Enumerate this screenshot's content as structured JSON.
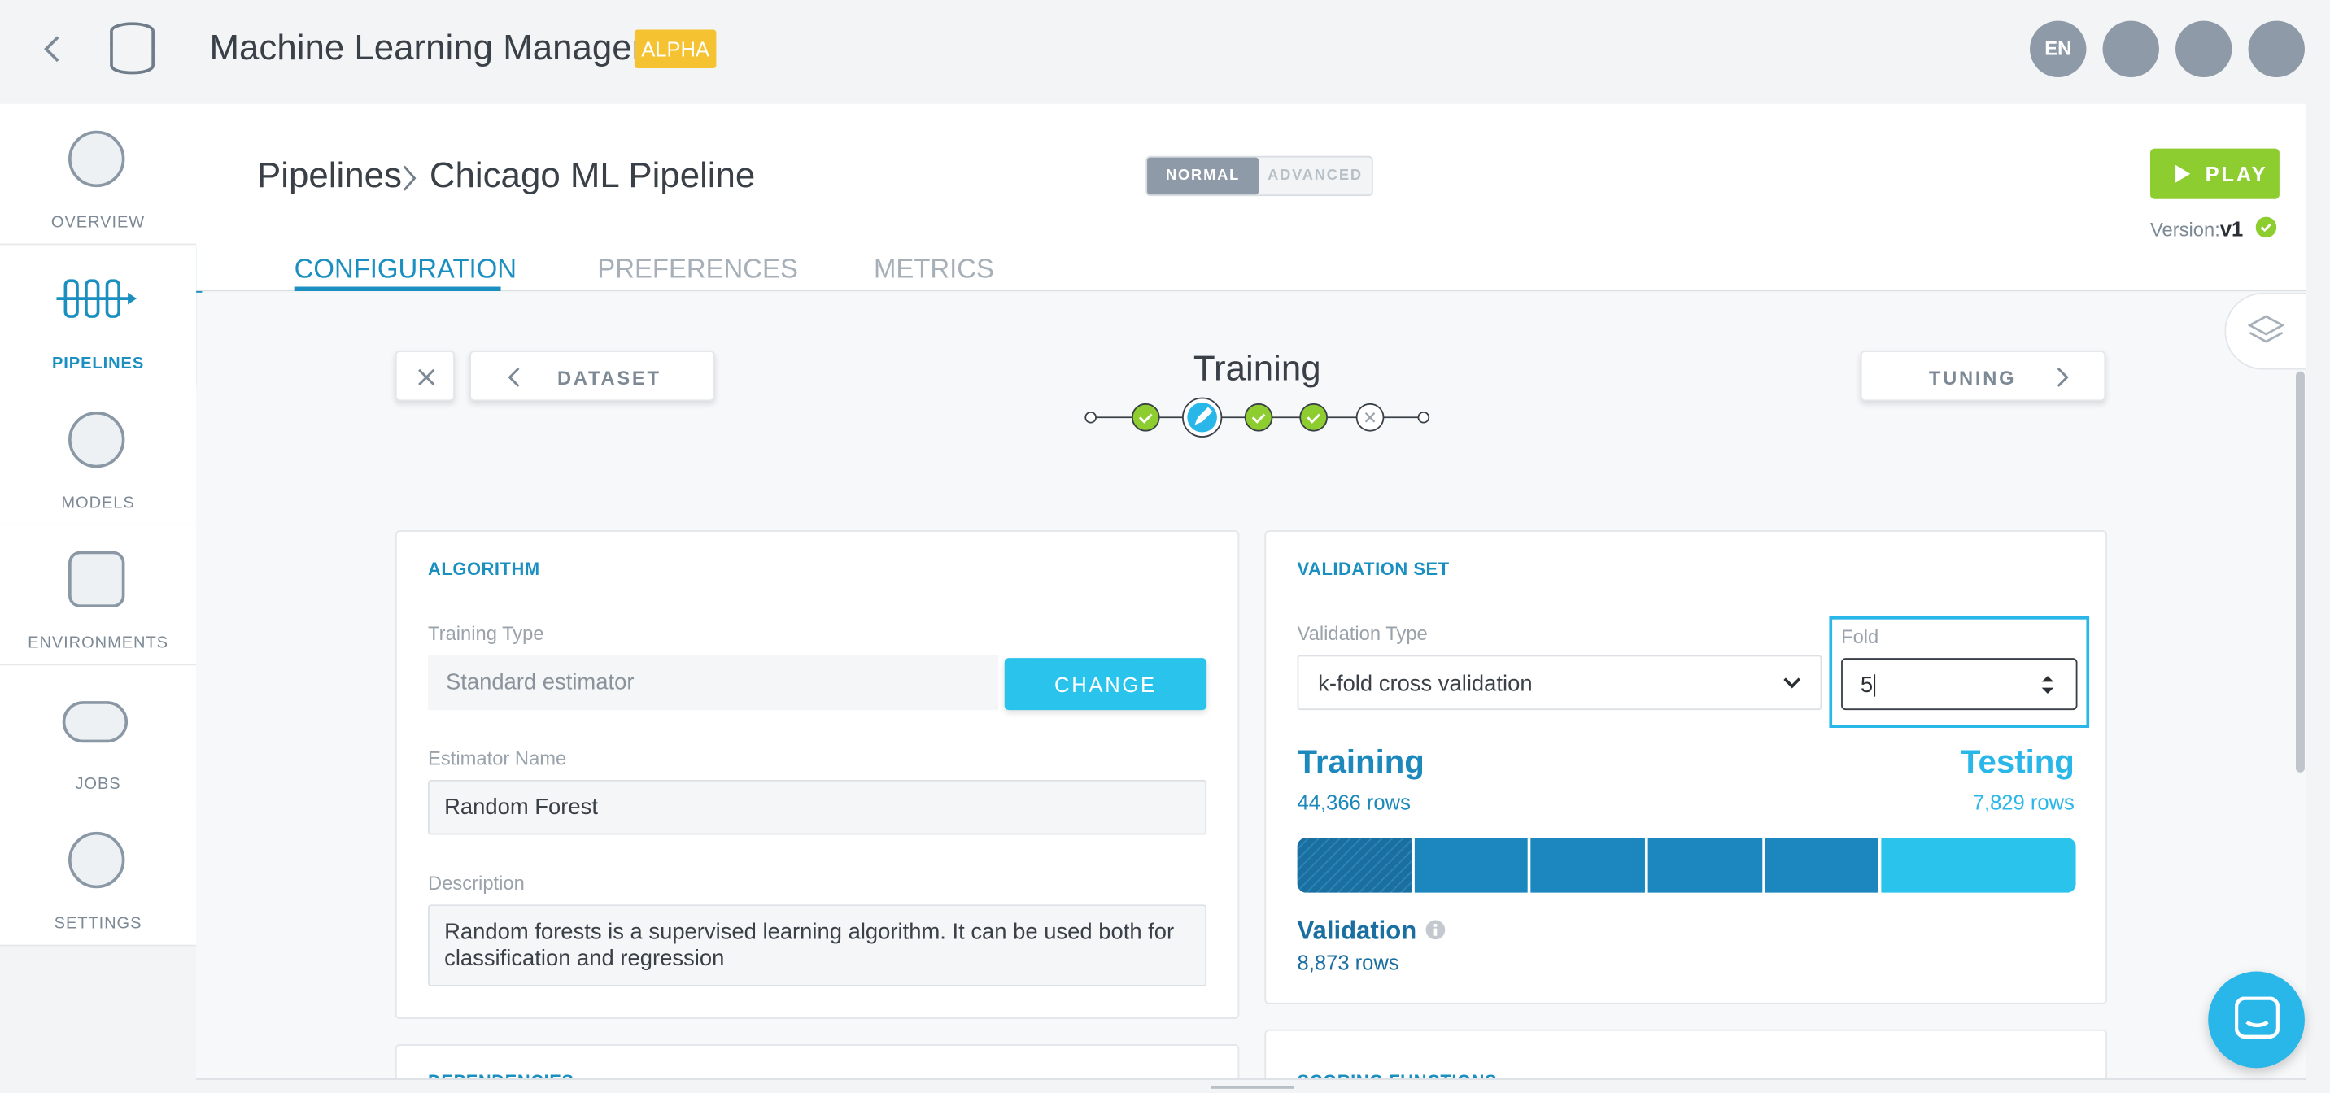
{
  "header": {
    "title": "Machine Learning Manager",
    "badge": "ALPHA",
    "language": "EN"
  },
  "sidebar": {
    "items": [
      "OVERVIEW",
      "PIPELINES",
      "MODELS",
      "ENVIRONMENTS",
      "JOBS",
      "SETTINGS"
    ]
  },
  "breadcrumb": {
    "parent": "Pipelines",
    "current": "Chicago ML Pipeline"
  },
  "mode_toggle": {
    "normal": "NORMAL",
    "advanced": "ADVANCED"
  },
  "play_button": "PLAY",
  "version": {
    "label": "Version:",
    "value": "v1"
  },
  "tabs": [
    "CONFIGURATION",
    "PREFERENCES",
    "METRICS"
  ],
  "step_nav": {
    "previous": "DATASET",
    "current": "Training",
    "next": "TUNING"
  },
  "algorithm_card": {
    "title": "ALGORITHM",
    "training_type_label": "Training Type",
    "training_type": "Standard estimator",
    "change_button": "CHANGE",
    "estimator_name_label": "Estimator Name",
    "estimator_name": "Random Forest",
    "description_label": "Description",
    "description": "Random forests is a supervised learning algorithm. It can be used both for classification and regression"
  },
  "validation_card": {
    "title": "VALIDATION SET",
    "validation_type_label": "Validation Type",
    "validation_type": "k-fold cross validation",
    "fold_label": "Fold",
    "fold": "5",
    "training_label": "Training",
    "training_rows": "44,366 rows",
    "testing_label": "Testing",
    "testing_rows": "7,829 rows",
    "validation_label": "Validation",
    "validation_rows": "8,873 rows"
  },
  "lower_cards": {
    "left_title": "DEPENDENCIES",
    "right_title": "SCORING FUNCTIONS"
  }
}
